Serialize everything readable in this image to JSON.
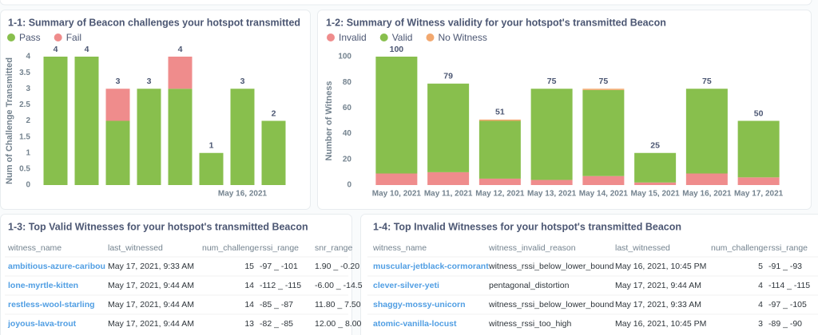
{
  "chart_data": [
    {
      "type": "stacked-bar",
      "title": "1-1: Summary of Beacon challenges your hotspot transmitted",
      "ylabel": "Num of Challenge Transmitted",
      "categories": [
        null,
        null,
        null,
        null,
        null,
        null,
        "May 16, 2021",
        null
      ],
      "series": [
        {
          "name": "Pass",
          "color": "#88bf4d",
          "values": [
            4,
            4,
            2,
            3,
            3,
            1,
            3,
            2
          ]
        },
        {
          "name": "Fail",
          "color": "#ef8c8c",
          "values": [
            0,
            0,
            1,
            0,
            1,
            0,
            0,
            0
          ]
        }
      ],
      "totals": [
        4,
        4,
        3,
        3,
        4,
        1,
        3,
        2
      ],
      "ylim": [
        0,
        4
      ],
      "yticks": [
        0,
        0.5,
        1,
        1.5,
        2,
        2.5,
        3,
        3.5,
        4
      ],
      "grid": false
    },
    {
      "type": "stacked-bar",
      "title": "1-2: Summary of Witness validity for your hotspot's transmitted Beacon",
      "ylabel": "Number of Witness",
      "categories": [
        "May 10, 2021",
        "May 11, 2021",
        "May 12, 2021",
        "May 13, 2021",
        "May 14, 2021",
        "May 15, 2021",
        "May 16, 2021",
        "May 17, 2021"
      ],
      "series": [
        {
          "name": "Invalid",
          "color": "#ef8c8c",
          "values": [
            9,
            10,
            5,
            4,
            7,
            2,
            9,
            6
          ]
        },
        {
          "name": "Valid",
          "color": "#88bf4d",
          "values": [
            91,
            69,
            45,
            71,
            67,
            23,
            66,
            44
          ]
        },
        {
          "name": "No Witness",
          "color": "#f2a86f",
          "values": [
            0,
            0,
            1,
            0,
            1,
            0,
            0,
            0
          ]
        }
      ],
      "totals": [
        100,
        79,
        51,
        75,
        75,
        25,
        75,
        50
      ],
      "ylim": [
        0,
        100
      ],
      "yticks": [
        0,
        20,
        40,
        60,
        80,
        100
      ],
      "grid": false
    }
  ],
  "tables": [
    {
      "title": "1-3: Top Valid Witnesses for your hotspot's transmitted Beacon",
      "columns": [
        "witness_name",
        "last_witnessed",
        "num_challenge",
        "rssi_range",
        "snr_range"
      ],
      "rows": [
        [
          "ambitious-azure-caribou",
          "May 17, 2021, 9:33 AM",
          15,
          "-97 _ -101",
          "1.90 _ -0.20"
        ],
        [
          "lone-myrtle-kitten",
          "May 17, 2021, 9:44 AM",
          14,
          "-112 _ -115",
          "-6.00 _ -14.5"
        ],
        [
          "restless-wool-starling",
          "May 17, 2021, 9:44 AM",
          14,
          "-85 _ -87",
          "11.80 _ 7.50"
        ],
        [
          "joyous-lava-trout",
          "May 17, 2021, 9:44 AM",
          13,
          "-82 _ -85",
          "12.00 _ 8.00"
        ]
      ]
    },
    {
      "title": "1-4: Top Invalid Witnesses for your hotspot's transmitted Beacon",
      "columns": [
        "witness_name",
        "witness_invalid_reason",
        "last_witnessed",
        "num_challenge",
        "rssi_range"
      ],
      "rows": [
        [
          "muscular-jetblack-cormorant",
          "witness_rssi_below_lower_bound",
          "May 16, 2021, 10:45 PM",
          5,
          "-91 _ -93"
        ],
        [
          "clever-silver-yeti",
          "pentagonal_distortion",
          "May 17, 2021, 9:44 AM",
          4,
          "-114 _ -115"
        ],
        [
          "shaggy-mossy-unicorn",
          "witness_rssi_below_lower_bound",
          "May 17, 2021, 9:33 AM",
          4,
          "-97 _ -105"
        ],
        [
          "atomic-vanilla-locust",
          "witness_rssi_too_high",
          "May 16, 2021, 10:45 PM",
          3,
          "-89 _ -90"
        ]
      ]
    }
  ]
}
